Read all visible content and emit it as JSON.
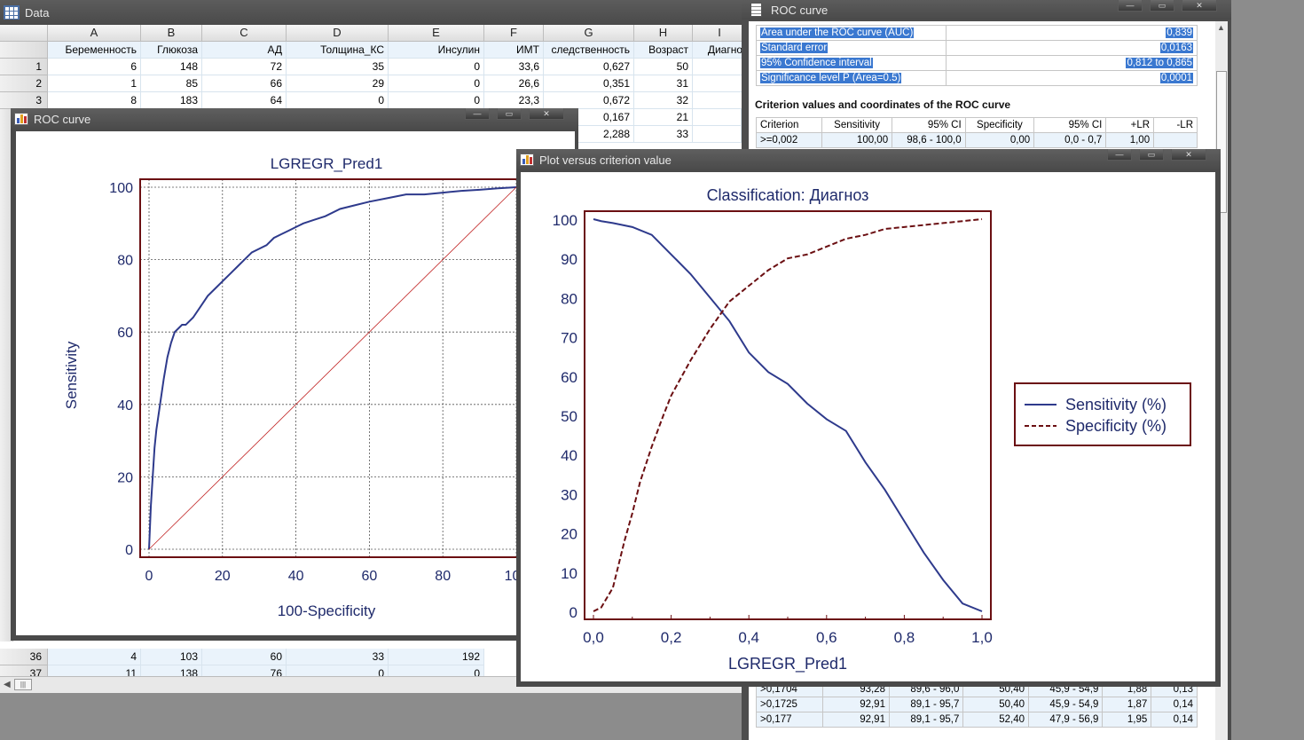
{
  "data_window": {
    "title": "Data",
    "columns": [
      {
        "letter": "A",
        "name": "Беременность"
      },
      {
        "letter": "B",
        "name": "Глюкоза"
      },
      {
        "letter": "C",
        "name": "АД"
      },
      {
        "letter": "D",
        "name": "Толщина_КС"
      },
      {
        "letter": "E",
        "name": "Инсулин"
      },
      {
        "letter": "F",
        "name": "ИМТ"
      },
      {
        "letter": "G",
        "name": "следственность"
      },
      {
        "letter": "H",
        "name": "Возраст"
      },
      {
        "letter": "I",
        "name": "Диагно"
      }
    ],
    "rows": [
      {
        "n": "1",
        "cells": [
          "6",
          "148",
          "72",
          "35",
          "0",
          "33,6",
          "0,627",
          "50",
          ""
        ]
      },
      {
        "n": "2",
        "cells": [
          "1",
          "85",
          "66",
          "29",
          "0",
          "26,6",
          "0,351",
          "31",
          ""
        ]
      },
      {
        "n": "3",
        "cells": [
          "8",
          "183",
          "64",
          "0",
          "0",
          "23,3",
          "0,672",
          "32",
          ""
        ]
      }
    ],
    "hidden_g_values": [
      "0,167",
      "2,288"
    ],
    "hidden_h_values": [
      "21",
      "33"
    ],
    "bottom_rows": [
      {
        "n": "36",
        "cells": [
          "4",
          "103",
          "60",
          "33",
          "192"
        ]
      },
      {
        "n": "37",
        "cells": [
          "11",
          "138",
          "76",
          "0",
          "0"
        ]
      }
    ]
  },
  "roc_window": {
    "title": "ROC curve",
    "chart_title": "LGREGR_Pred1",
    "xlabel": "100-Specificity",
    "ylabel": "Sensitivity"
  },
  "roc_report": {
    "title": "ROC curve",
    "stats": [
      {
        "label": "Area under the ROC curve (AUC)",
        "value": "0,839"
      },
      {
        "label": "Standard error",
        "value": "0,0163"
      },
      {
        "label": "95% Confidence interval",
        "value": "0,812 to 0,865"
      },
      {
        "label": "Significance level P (Area=0.5)",
        "value": "0,0001"
      }
    ],
    "section_title": "Criterion values and coordinates of the ROC curve",
    "table_headers": [
      "Criterion",
      "Sensitivity",
      "95% CI",
      "Specificity",
      "95% CI",
      "+LR",
      "-LR"
    ],
    "first_row": [
      ">=0,002",
      "100,00",
      "98,6 - 100,0",
      "0,00",
      "0,0 - 0,7",
      "1,00",
      ""
    ],
    "bottom_rows": [
      [
        ">0,1704",
        "93,28",
        "89,6 - 96,0",
        "50,40",
        "45,9 - 54,9",
        "1,88",
        "0,13"
      ],
      [
        ">0,1725",
        "92,91",
        "89,1 - 95,7",
        "50,40",
        "45,9 - 54,9",
        "1,87",
        "0,14"
      ],
      [
        ">0,177",
        "92,91",
        "89,1 - 95,7",
        "52,40",
        "47,9 - 56,9",
        "1,95",
        "0,14"
      ]
    ]
  },
  "plot_window": {
    "title": "Plot versus criterion value",
    "chart_title": "Classification: Диагноз",
    "xlabel": "LGREGR_Pred1",
    "legend": [
      "Sensitivity (%)",
      "Specificity (%)"
    ]
  },
  "colors": {
    "navy": "#1f2a6b",
    "maroon": "#6b0f12",
    "curve_blue": "#2e3a8c",
    "selection": "#3a78d0"
  },
  "chart_data": [
    {
      "type": "line",
      "title": "LGREGR_Pred1",
      "xlabel": "100-Specificity",
      "ylabel": "Sensitivity",
      "xlim": [
        0,
        100
      ],
      "ylim": [
        0,
        100
      ],
      "xticks": [
        0,
        20,
        40,
        60,
        80,
        100
      ],
      "yticks": [
        0,
        20,
        40,
        60,
        80,
        100
      ],
      "grid": true,
      "series": [
        {
          "x": [
            0,
            0.5,
            1,
            1.5,
            2,
            3,
            4,
            5,
            6,
            7,
            8,
            9,
            10,
            12,
            14,
            16,
            18,
            20,
            22,
            24,
            26,
            28,
            30,
            32,
            34,
            36,
            38,
            40,
            42,
            45,
            48,
            52,
            56,
            60,
            65,
            70,
            75,
            80,
            85,
            90,
            95,
            100
          ],
          "y": [
            0,
            12,
            20,
            28,
            33,
            40,
            47,
            53,
            57,
            60,
            61,
            62,
            62,
            64,
            67,
            70,
            72,
            74,
            76,
            78,
            80,
            82,
            83,
            84,
            86,
            87,
            88,
            89,
            90,
            91,
            92,
            94,
            95,
            96,
            97,
            98,
            98,
            98.5,
            99,
            99.3,
            99.7,
            100
          ]
        },
        {
          "x": [
            0,
            100
          ],
          "y": [
            0,
            100
          ]
        }
      ]
    },
    {
      "type": "line",
      "title": "Classification: Диагноз",
      "xlabel": "LGREGR_Pred1",
      "xlim": [
        0,
        1
      ],
      "ylim": [
        0,
        100
      ],
      "xticks": [
        "0,0",
        "0,2",
        "0,4",
        "0,6",
        "0,8",
        "1,0"
      ],
      "yticks": [
        0,
        10,
        20,
        30,
        40,
        50,
        60,
        70,
        80,
        90,
        100
      ],
      "legend_position": "right",
      "series": [
        {
          "name": "Sensitivity (%)",
          "x": [
            0,
            0.02,
            0.05,
            0.1,
            0.15,
            0.2,
            0.25,
            0.3,
            0.35,
            0.4,
            0.45,
            0.5,
            0.55,
            0.6,
            0.65,
            0.7,
            0.75,
            0.8,
            0.85,
            0.9,
            0.95,
            1.0
          ],
          "y": [
            100,
            99.5,
            99,
            98,
            96,
            91,
            86,
            80,
            74,
            66,
            61,
            58,
            53,
            49,
            46,
            38,
            31,
            23,
            15,
            8,
            2,
            0
          ]
        },
        {
          "name": "Specificity (%)",
          "x": [
            0,
            0.02,
            0.05,
            0.08,
            0.1,
            0.12,
            0.15,
            0.18,
            0.2,
            0.25,
            0.3,
            0.35,
            0.4,
            0.45,
            0.5,
            0.55,
            0.6,
            0.65,
            0.7,
            0.75,
            0.8,
            0.85,
            0.9,
            0.95,
            1.0
          ],
          "y": [
            0,
            1,
            6,
            18,
            25,
            33,
            42,
            50,
            55,
            64,
            72,
            79,
            83,
            87,
            90,
            91,
            93,
            95,
            96,
            97.5,
            98,
            98.5,
            99,
            99.5,
            100
          ]
        }
      ]
    }
  ]
}
